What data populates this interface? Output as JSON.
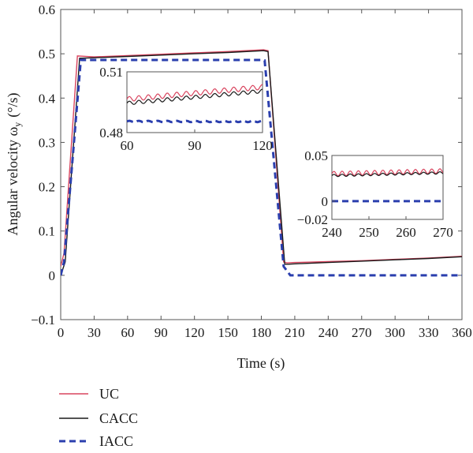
{
  "chart_data": {
    "type": "line",
    "title": "",
    "xlabel": "Time (s)",
    "ylabel": "Angular velocity ω",
    "ylabel_sub": "y",
    "ylabel_unit": "(°/s)",
    "xlim": [
      0,
      360
    ],
    "ylim": [
      -0.1,
      0.6
    ],
    "xticks": [
      0,
      30,
      60,
      90,
      120,
      150,
      180,
      210,
      240,
      270,
      300,
      330,
      360
    ],
    "xtick_labels": [
      "0",
      "30",
      "60",
      "90",
      "120",
      "150",
      "180",
      "210",
      "240",
      "270",
      "300",
      "330",
      "360"
    ],
    "yticks": [
      -0.1,
      0,
      0.1,
      0.2,
      0.3,
      0.4,
      0.5,
      0.6
    ],
    "ytick_labels": [
      "−0.1",
      "0",
      "0.1",
      "0.2",
      "0.3",
      "0.4",
      "0.5",
      "0.6"
    ],
    "grid": false,
    "legend_position": "bottom-left, below plot",
    "series": [
      {
        "name": "UC",
        "color": "#d9455f",
        "dash": "solid",
        "x": [
          0,
          3,
          15,
          30,
          60,
          90,
          120,
          150,
          182,
          186,
          200,
          203,
          210,
          240,
          270,
          300,
          330,
          360
        ],
        "y": [
          0.02,
          0.05,
          0.495,
          0.493,
          0.496,
          0.499,
          0.502,
          0.505,
          0.509,
          0.507,
          0.03,
          0.028,
          0.029,
          0.031,
          0.033,
          0.036,
          0.039,
          0.043
        ]
      },
      {
        "name": "CACC",
        "color": "#1a1a1a",
        "dash": "solid",
        "x": [
          0,
          4,
          17,
          30,
          60,
          90,
          120,
          150,
          182,
          186,
          201,
          204,
          210,
          240,
          270,
          300,
          330,
          360
        ],
        "y": [
          0.0,
          0.03,
          0.49,
          0.491,
          0.494,
          0.497,
          0.5,
          0.503,
          0.507,
          0.505,
          0.025,
          0.025,
          0.026,
          0.029,
          0.032,
          0.035,
          0.038,
          0.042
        ]
      },
      {
        "name": "IACC",
        "color": "#2b3fae",
        "dash": "dashed",
        "x": [
          0,
          3,
          18,
          30,
          60,
          90,
          120,
          150,
          180,
          183,
          200,
          206,
          210,
          240,
          270,
          300,
          330,
          360
        ],
        "y": [
          0.0,
          0.03,
          0.486,
          0.486,
          0.486,
          0.486,
          0.486,
          0.486,
          0.486,
          0.485,
          0.02,
          0.0,
          0.0,
          0.0,
          0.0,
          0.0,
          0.0,
          0.0
        ]
      }
    ],
    "insets": [
      {
        "xlim": [
          60,
          120
        ],
        "ylim": [
          0.48,
          0.51
        ],
        "xticks": [
          60,
          90,
          120
        ],
        "xtick_labels": [
          "60",
          "90",
          "120"
        ],
        "yticks": [
          0.48,
          0.51
        ],
        "ytick_labels": [
          "0.48",
          "0.51"
        ],
        "series_values": {
          "UC": {
            "base": [
              0.4965,
              0.5025
            ],
            "amp": 0.0012,
            "period": 4.2
          },
          "CACC": {
            "base": [
              0.4945,
              0.5005
            ],
            "amp": 0.0009,
            "period": 4.2
          },
          "IACC": {
            "base": [
              0.4855,
              0.4855
            ],
            "amp": 0.0003,
            "period": 4.2
          }
        }
      },
      {
        "xlim": [
          240,
          270
        ],
        "ylim": [
          -0.02,
          0.05
        ],
        "xticks": [
          240,
          250,
          260,
          270
        ],
        "xtick_labels": [
          "240",
          "250",
          "260",
          "270"
        ],
        "yticks": [
          -0.02,
          0,
          0.05
        ],
        "ytick_labels": [
          "−0.02",
          "0",
          "0.05"
        ],
        "series_values": {
          "UC": {
            "base": [
              0.03,
              0.033
            ],
            "amp": 0.0025,
            "period": 2.2
          },
          "CACC": {
            "base": [
              0.028,
              0.031
            ],
            "amp": 0.0012,
            "period": 2.2
          },
          "IACC": {
            "base": [
              0.0,
              0.0
            ],
            "amp": 0.0,
            "period": 2.2
          }
        }
      }
    ]
  }
}
